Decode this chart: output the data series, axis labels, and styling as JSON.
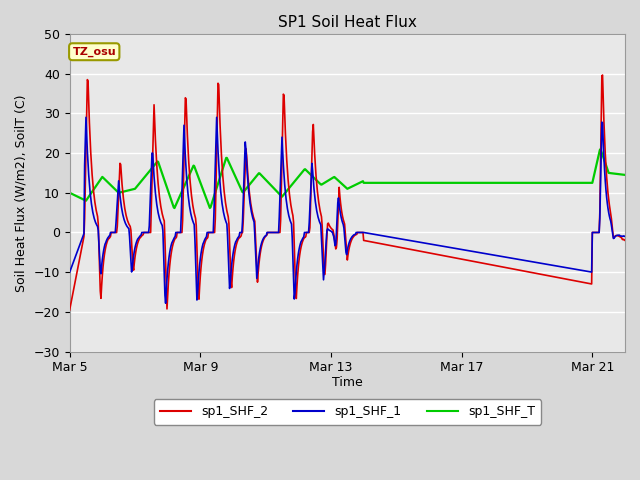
{
  "title": "SP1 Soil Heat Flux",
  "ylabel": "Soil Heat Flux (W/m2), SoilT (C)",
  "xlabel": "Time",
  "ylim": [
    -30,
    50
  ],
  "xlim_days": [
    0,
    17
  ],
  "tz_label": "TZ_osu",
  "x_tick_labels": [
    "Mar 5",
    "Mar 9",
    "Mar 13",
    "Mar 17",
    "Mar 21"
  ],
  "x_tick_positions": [
    0,
    4,
    8,
    12,
    16
  ],
  "legend_labels": [
    "sp1_SHF_2",
    "sp1_SHF_1",
    "sp1_SHF_T"
  ],
  "colors": {
    "sp1_SHF_2": "#dd0000",
    "sp1_SHF_1": "#0000cc",
    "sp1_SHF_T": "#00cc00"
  },
  "background_color": "#e8e8e8",
  "grid_color": "#ffffff",
  "yticks": [
    -30,
    -20,
    -10,
    0,
    10,
    20,
    30,
    40,
    50
  ]
}
